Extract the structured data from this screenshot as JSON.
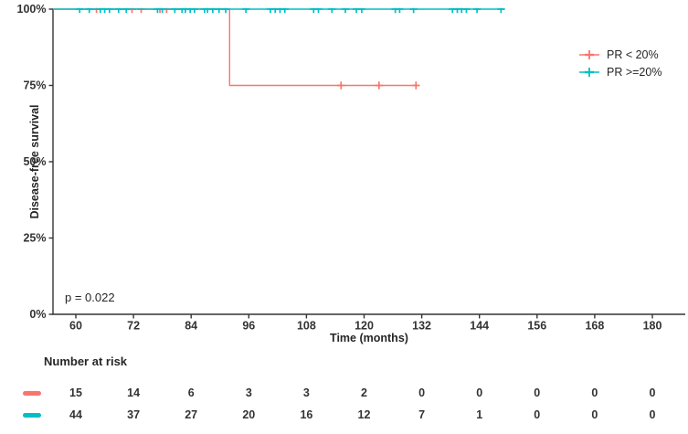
{
  "chart_data": {
    "type": "line",
    "subtype": "kaplan-meier-step",
    "title": "",
    "xlabel": "Time (months)",
    "ylabel": "Disease-free survival",
    "x_ticks": [
      60,
      72,
      84,
      96,
      108,
      120,
      132,
      144,
      156,
      168,
      180
    ],
    "x_tick_labels": [
      "60",
      "72",
      "84",
      "96",
      "108",
      "120",
      "132",
      "144",
      "156",
      "168",
      "180"
    ],
    "y_ticks": [
      0,
      25,
      50,
      75,
      100
    ],
    "y_tick_labels": [
      "0%",
      "25%",
      "50%",
      "75%",
      "100%"
    ],
    "x_domain": [
      55.2,
      186.9
    ],
    "y_domain": [
      0,
      100
    ],
    "grid": "off",
    "legend_position": "right-top",
    "annotations": {
      "p_value": "p = 0.022"
    },
    "series": [
      {
        "name": "PR < 20%",
        "color": "#F8766D",
        "steps": [
          [
            55.2,
            100
          ],
          [
            92,
            100
          ],
          [
            92,
            75
          ],
          [
            130.9,
            75
          ]
        ],
        "censor_marks": [
          [
            64.3,
            100
          ],
          [
            71.7,
            100
          ],
          [
            73.6,
            100
          ],
          [
            77.5,
            100
          ],
          [
            78.9,
            100
          ],
          [
            115.2,
            75
          ],
          [
            123.1,
            75
          ],
          [
            130.8,
            75
          ]
        ]
      },
      {
        "name": "PR >=20%",
        "color": "#00BFC4",
        "steps": [
          [
            55.2,
            100
          ],
          [
            149.3,
            100
          ]
        ],
        "censor_marks": [
          [
            60.8,
            100
          ],
          [
            62.8,
            100
          ],
          [
            65.1,
            100
          ],
          [
            66.0,
            100
          ],
          [
            67.0,
            100
          ],
          [
            68.9,
            100
          ],
          [
            70.5,
            100
          ],
          [
            77.0,
            100
          ],
          [
            78.0,
            100
          ],
          [
            80.6,
            100
          ],
          [
            82.1,
            100
          ],
          [
            82.8,
            100
          ],
          [
            83.8,
            100
          ],
          [
            84.7,
            100
          ],
          [
            86.8,
            100
          ],
          [
            87.4,
            100
          ],
          [
            88.5,
            100
          ],
          [
            89.8,
            100
          ],
          [
            91.2,
            100
          ],
          [
            95.4,
            100
          ],
          [
            100.5,
            100
          ],
          [
            101.5,
            100
          ],
          [
            102.5,
            100
          ],
          [
            103.5,
            100
          ],
          [
            109.5,
            100
          ],
          [
            110.5,
            100
          ],
          [
            113.3,
            100
          ],
          [
            116.1,
            100
          ],
          [
            118.4,
            100
          ],
          [
            119.5,
            100
          ],
          [
            126.5,
            100
          ],
          [
            127.4,
            100
          ],
          [
            130.3,
            100
          ],
          [
            138.4,
            100
          ],
          [
            139.4,
            100
          ],
          [
            140.3,
            100
          ],
          [
            141.3,
            100
          ],
          [
            143.5,
            100
          ],
          [
            148.5,
            100
          ]
        ]
      }
    ]
  },
  "risk_table": {
    "title": "Number at risk",
    "rows": [
      {
        "name": "PR < 20%",
        "color": "#F8766D",
        "values": [
          "15",
          "14",
          "6",
          "3",
          "3",
          "2",
          "0",
          "0",
          "0",
          "0",
          "0"
        ]
      },
      {
        "name": "PR >=20%",
        "color": "#00BFC4",
        "values": [
          "44",
          "37",
          "27",
          "20",
          "16",
          "12",
          "7",
          "1",
          "0",
          "0",
          "0"
        ]
      }
    ]
  }
}
